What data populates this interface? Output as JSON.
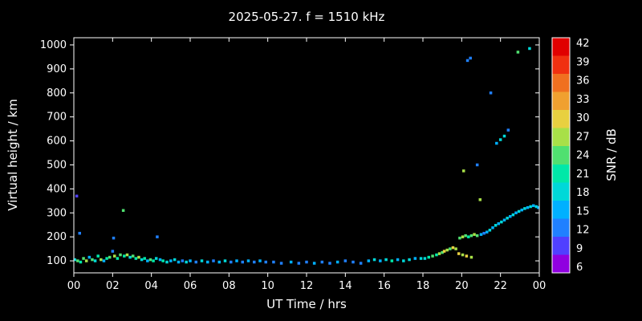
{
  "chart_data": {
    "type": "scatter",
    "title": "2025-05-27. f = 1510 kHz",
    "xlabel": "UT Time / hrs",
    "ylabel": "Virtual height / km",
    "xlim": [
      0,
      24
    ],
    "ylim": [
      50,
      1030
    ],
    "grid": false,
    "x_tick_labels": [
      "00",
      "02",
      "04",
      "06",
      "08",
      "10",
      "12",
      "14",
      "16",
      "18",
      "20",
      "22",
      "00"
    ],
    "x_tick_values": [
      0,
      2,
      4,
      6,
      8,
      10,
      12,
      14,
      16,
      18,
      20,
      22,
      24
    ],
    "y_tick_values": [
      100,
      200,
      300,
      400,
      500,
      600,
      700,
      800,
      900,
      1000
    ],
    "colorbar": {
      "label": "SNR / dB",
      "min": 6,
      "max": 42,
      "ticks": [
        6,
        9,
        12,
        15,
        18,
        21,
        24,
        27,
        30,
        33,
        36,
        39,
        42
      ],
      "colors": [
        "#9000e0",
        "#5040ff",
        "#2080ff",
        "#00b0ff",
        "#00d8d8",
        "#00e8a8",
        "#50e070",
        "#a8e048",
        "#e8d040",
        "#f0a030",
        "#f07020",
        "#f03010",
        "#e00000"
      ]
    },
    "background_color": "#000000",
    "frame_color": "#ffffff",
    "text_color": "#ffffff",
    "points_format": "[UT_hours, virtual_height_km, snr_dB]",
    "points": [
      [
        0.05,
        105,
        18
      ],
      [
        0.15,
        370,
        9
      ],
      [
        0.2,
        100,
        24
      ],
      [
        0.3,
        215,
        12
      ],
      [
        0.35,
        95,
        21
      ],
      [
        0.5,
        110,
        24
      ],
      [
        0.65,
        100,
        27
      ],
      [
        0.8,
        115,
        15
      ],
      [
        0.95,
        105,
        24
      ],
      [
        1.1,
        100,
        18
      ],
      [
        1.25,
        120,
        21
      ],
      [
        1.4,
        105,
        27
      ],
      [
        1.55,
        100,
        15
      ],
      [
        1.7,
        110,
        21
      ],
      [
        1.85,
        115,
        24
      ],
      [
        2.0,
        140,
        12
      ],
      [
        2.05,
        195,
        12
      ],
      [
        2.1,
        120,
        27
      ],
      [
        2.25,
        110,
        21
      ],
      [
        2.4,
        125,
        24
      ],
      [
        2.55,
        310,
        24
      ],
      [
        2.6,
        120,
        21
      ],
      [
        2.75,
        125,
        27
      ],
      [
        2.9,
        115,
        18
      ],
      [
        3.05,
        120,
        24
      ],
      [
        3.2,
        110,
        21
      ],
      [
        3.35,
        115,
        27
      ],
      [
        3.5,
        105,
        18
      ],
      [
        3.65,
        110,
        21
      ],
      [
        3.8,
        100,
        15
      ],
      [
        3.95,
        105,
        24
      ],
      [
        4.1,
        100,
        21
      ],
      [
        4.25,
        110,
        18
      ],
      [
        4.3,
        200,
        12
      ],
      [
        4.45,
        105,
        15
      ],
      [
        4.6,
        100,
        21
      ],
      [
        4.8,
        95,
        18
      ],
      [
        5.0,
        100,
        15
      ],
      [
        5.2,
        105,
        18
      ],
      [
        5.4,
        95,
        15
      ],
      [
        5.6,
        100,
        12
      ],
      [
        5.8,
        95,
        18
      ],
      [
        6.0,
        100,
        15
      ],
      [
        6.3,
        95,
        12
      ],
      [
        6.6,
        100,
        18
      ],
      [
        6.9,
        95,
        15
      ],
      [
        7.2,
        100,
        12
      ],
      [
        7.5,
        95,
        15
      ],
      [
        7.8,
        100,
        18
      ],
      [
        8.1,
        95,
        12
      ],
      [
        8.4,
        100,
        15
      ],
      [
        8.7,
        95,
        12
      ],
      [
        9.0,
        100,
        15
      ],
      [
        9.3,
        95,
        12
      ],
      [
        9.6,
        100,
        15
      ],
      [
        9.9,
        95,
        12
      ],
      [
        10.3,
        95,
        12
      ],
      [
        10.7,
        90,
        12
      ],
      [
        11.2,
        95,
        15
      ],
      [
        11.6,
        90,
        12
      ],
      [
        12.0,
        95,
        12
      ],
      [
        12.4,
        90,
        15
      ],
      [
        12.8,
        95,
        12
      ],
      [
        13.2,
        90,
        12
      ],
      [
        13.6,
        95,
        15
      ],
      [
        14.0,
        100,
        12
      ],
      [
        14.4,
        95,
        12
      ],
      [
        14.8,
        90,
        12
      ],
      [
        15.2,
        100,
        15
      ],
      [
        15.5,
        105,
        18
      ],
      [
        15.8,
        100,
        15
      ],
      [
        16.1,
        105,
        18
      ],
      [
        16.4,
        100,
        21
      ],
      [
        16.7,
        105,
        15
      ],
      [
        17.0,
        100,
        18
      ],
      [
        17.3,
        105,
        18
      ],
      [
        17.6,
        110,
        15
      ],
      [
        17.9,
        110,
        18
      ],
      [
        18.1,
        110,
        18
      ],
      [
        18.3,
        115,
        21
      ],
      [
        18.5,
        120,
        24
      ],
      [
        18.7,
        125,
        21
      ],
      [
        18.85,
        130,
        27
      ],
      [
        19.0,
        135,
        24
      ],
      [
        19.1,
        140,
        30
      ],
      [
        19.25,
        145,
        27
      ],
      [
        19.4,
        150,
        24
      ],
      [
        19.55,
        155,
        30
      ],
      [
        19.7,
        150,
        27
      ],
      [
        19.85,
        130,
        30
      ],
      [
        20.05,
        125,
        27
      ],
      [
        20.25,
        120,
        30
      ],
      [
        20.5,
        115,
        27
      ],
      [
        19.9,
        195,
        24
      ],
      [
        20.05,
        200,
        27
      ],
      [
        20.2,
        205,
        24
      ],
      [
        20.35,
        200,
        21
      ],
      [
        20.5,
        205,
        24
      ],
      [
        20.65,
        210,
        27
      ],
      [
        20.8,
        205,
        24
      ],
      [
        20.95,
        355,
        27
      ],
      [
        20.3,
        935,
        12
      ],
      [
        20.45,
        945,
        12
      ],
      [
        20.1,
        475,
        27
      ],
      [
        20.8,
        500,
        12
      ],
      [
        21.5,
        800,
        12
      ],
      [
        21.8,
        590,
        15
      ],
      [
        22.0,
        605,
        18
      ],
      [
        22.2,
        620,
        18
      ],
      [
        22.4,
        645,
        12
      ],
      [
        22.9,
        970,
        24
      ],
      [
        23.5,
        985,
        18
      ],
      [
        21.0,
        210,
        15
      ],
      [
        21.15,
        215,
        12
      ],
      [
        21.3,
        220,
        15
      ],
      [
        21.45,
        228,
        18
      ],
      [
        21.6,
        238,
        15
      ],
      [
        21.75,
        248,
        18
      ],
      [
        21.9,
        255,
        15
      ],
      [
        22.05,
        262,
        18
      ],
      [
        22.2,
        270,
        15
      ],
      [
        22.35,
        278,
        18
      ],
      [
        22.5,
        285,
        15
      ],
      [
        22.65,
        292,
        18
      ],
      [
        22.8,
        300,
        15
      ],
      [
        22.95,
        306,
        18
      ],
      [
        23.1,
        312,
        15
      ],
      [
        23.25,
        318,
        18
      ],
      [
        23.4,
        322,
        15
      ],
      [
        23.55,
        326,
        18
      ],
      [
        23.7,
        330,
        15
      ],
      [
        23.85,
        326,
        18
      ],
      [
        23.95,
        322,
        15
      ]
    ]
  }
}
